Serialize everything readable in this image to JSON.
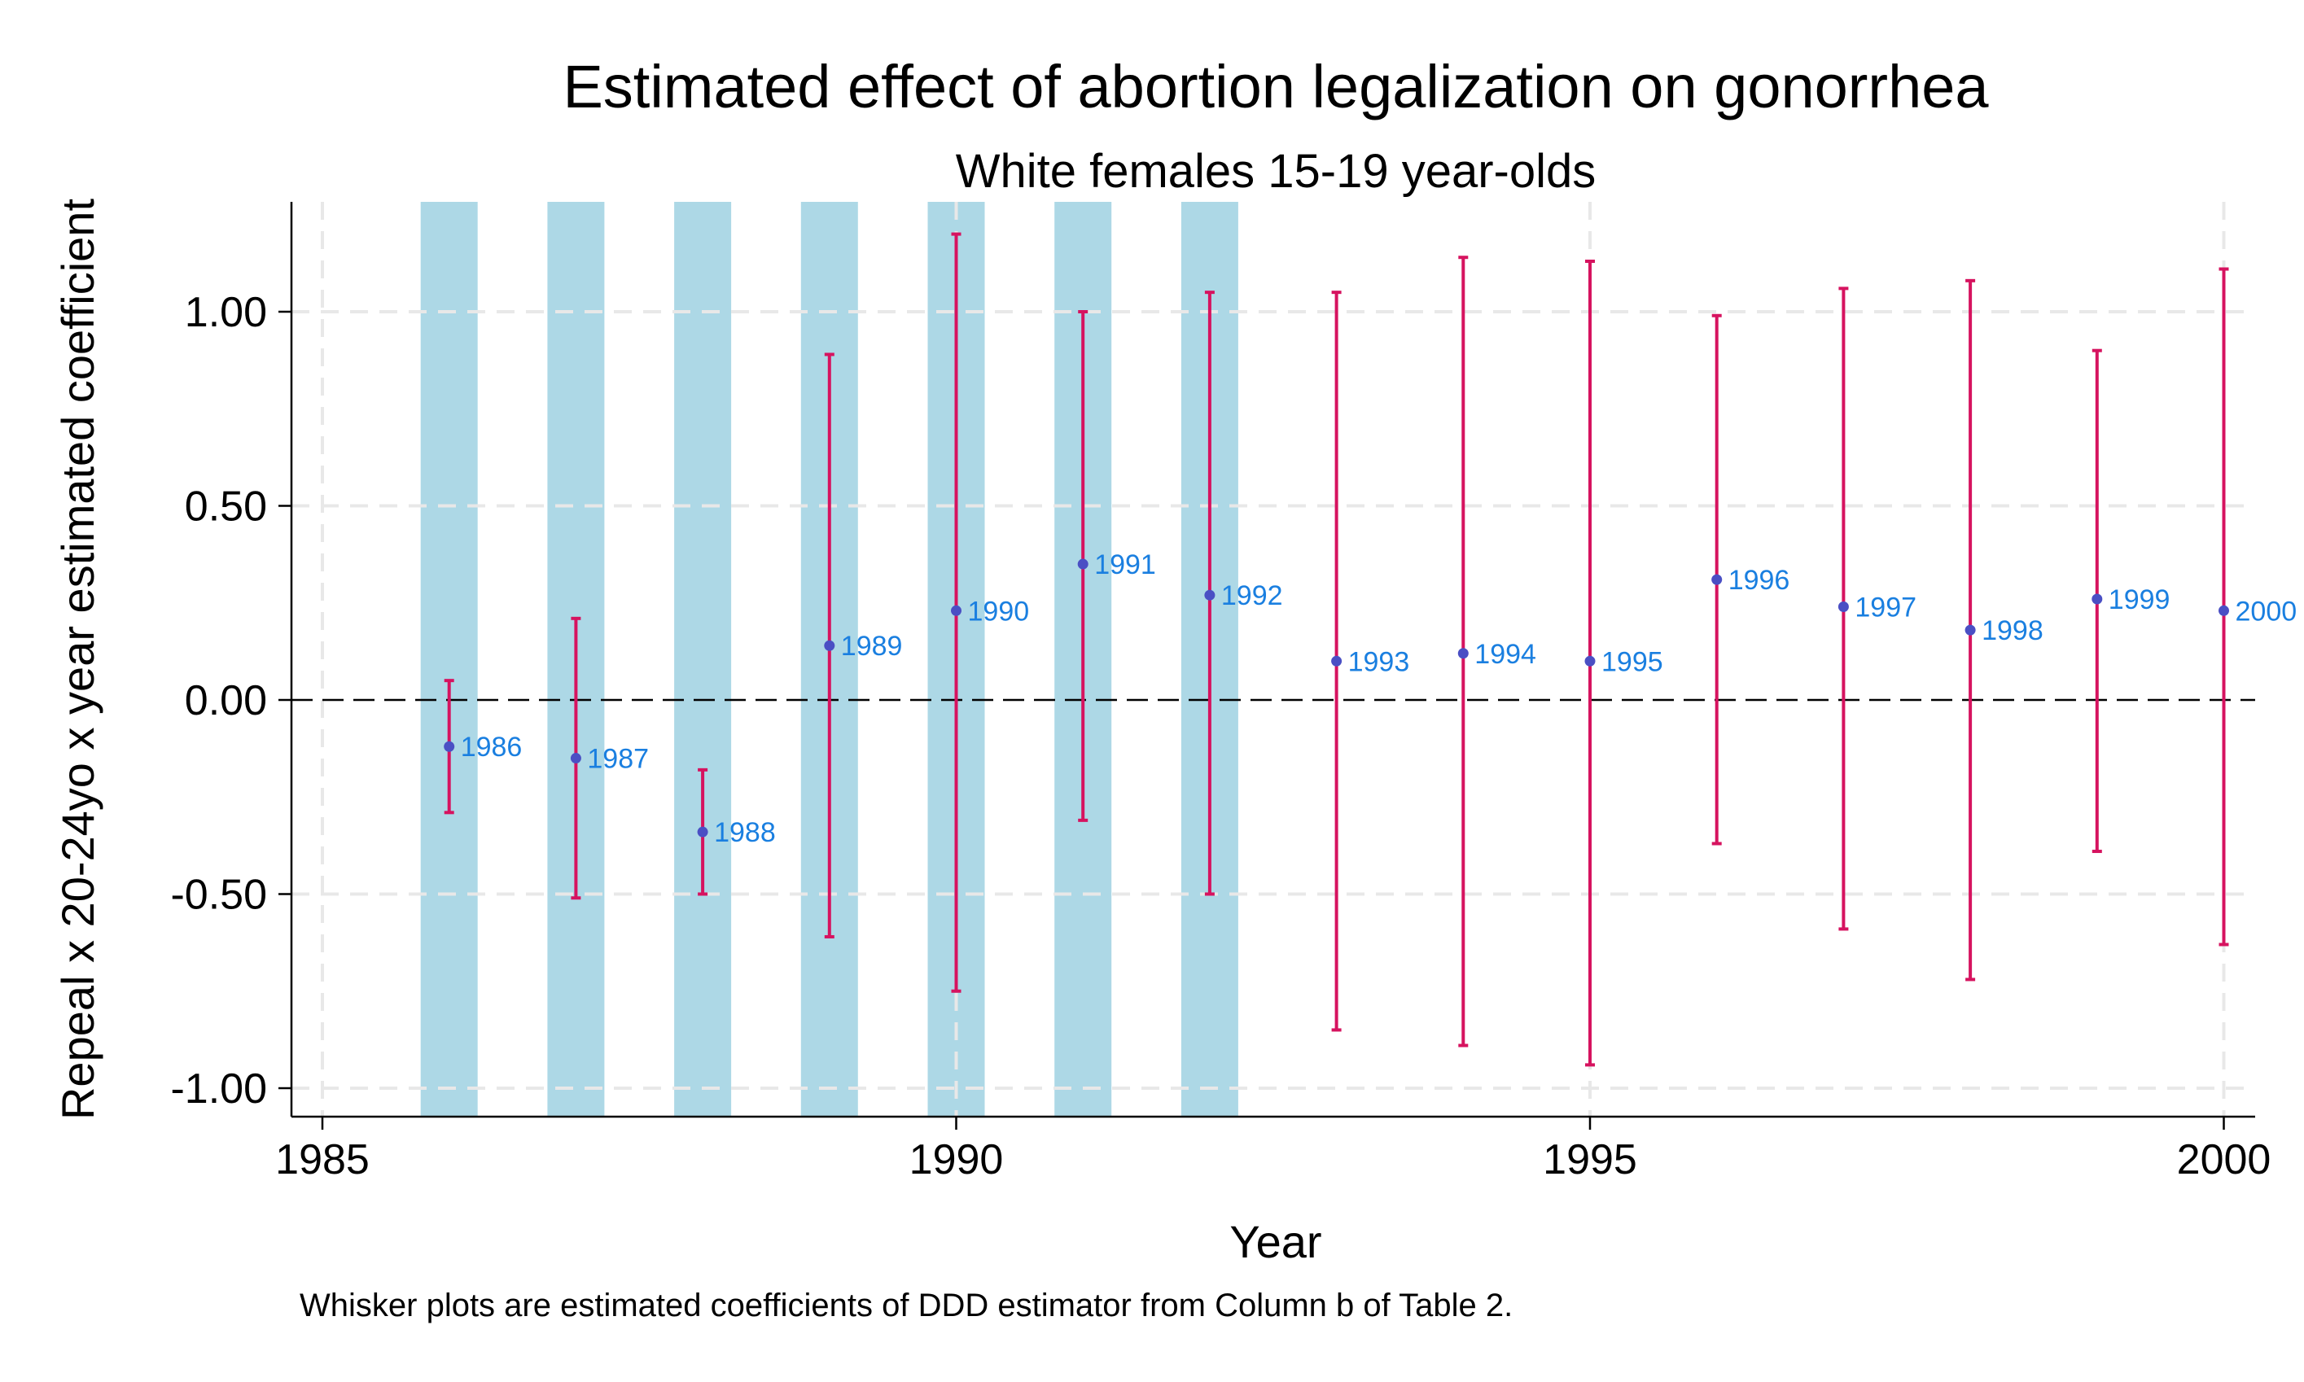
{
  "chart_data": {
    "type": "scatter",
    "title": "Estimated effect of abortion legalization on gonorrhea",
    "subtitle": "White females 15-19 year-olds",
    "xlabel": "Year",
    "ylabel": "Repeal x 20-24yo x year estimated coefficient",
    "note": "Whisker plots are estimated coefficients of DDD estimator from Column b of Table 2.",
    "xlim": [
      1985,
      2000
    ],
    "ylim": [
      -1.0,
      1.0
    ],
    "x_ticks": [
      "1985",
      "1990",
      "1995",
      "2000"
    ],
    "y_ticks": [
      "1.00",
      "0.50",
      "0.00",
      "-0.50",
      "-1.00"
    ],
    "grid": true,
    "reference_line": 0,
    "shaded_years": [
      1986,
      1987,
      1988,
      1989,
      1990,
      1991,
      1992
    ],
    "colors": {
      "shade": "#add8e6",
      "whisker": "#d6135f",
      "point": "#4a4fc4",
      "point_label": "#1a7fe0",
      "grid": "#e8e8e8"
    },
    "points": [
      {
        "x": 1986,
        "label": "1986",
        "y": -0.12,
        "lo": -0.29,
        "hi": 0.05
      },
      {
        "x": 1987,
        "label": "1987",
        "y": -0.15,
        "lo": -0.51,
        "hi": 0.21
      },
      {
        "x": 1988,
        "label": "1988",
        "y": -0.34,
        "lo": -0.5,
        "hi": -0.18
      },
      {
        "x": 1989,
        "label": "1989",
        "y": 0.14,
        "lo": -0.61,
        "hi": 0.89
      },
      {
        "x": 1990,
        "label": "1990",
        "y": 0.23,
        "lo": -0.75,
        "hi": 1.2
      },
      {
        "x": 1991,
        "label": "1991",
        "y": 0.35,
        "lo": -0.31,
        "hi": 1.0
      },
      {
        "x": 1992,
        "label": "1992",
        "y": 0.27,
        "lo": -0.5,
        "hi": 1.05
      },
      {
        "x": 1993,
        "label": "1993",
        "y": 0.1,
        "lo": -0.85,
        "hi": 1.05
      },
      {
        "x": 1994,
        "label": "1994",
        "y": 0.12,
        "lo": -0.89,
        "hi": 1.14
      },
      {
        "x": 1995,
        "label": "1995",
        "y": 0.1,
        "lo": -0.94,
        "hi": 1.13
      },
      {
        "x": 1996,
        "label": "1996",
        "y": 0.31,
        "lo": -0.37,
        "hi": 0.99
      },
      {
        "x": 1997,
        "label": "1997",
        "y": 0.24,
        "lo": -0.59,
        "hi": 1.06
      },
      {
        "x": 1998,
        "label": "1998",
        "y": 0.18,
        "lo": -0.72,
        "hi": 1.08
      },
      {
        "x": 1999,
        "label": "1999",
        "y": 0.26,
        "lo": -0.39,
        "hi": 0.9
      },
      {
        "x": 2000,
        "label": "2000",
        "y": 0.23,
        "lo": -0.63,
        "hi": 1.11
      }
    ]
  }
}
